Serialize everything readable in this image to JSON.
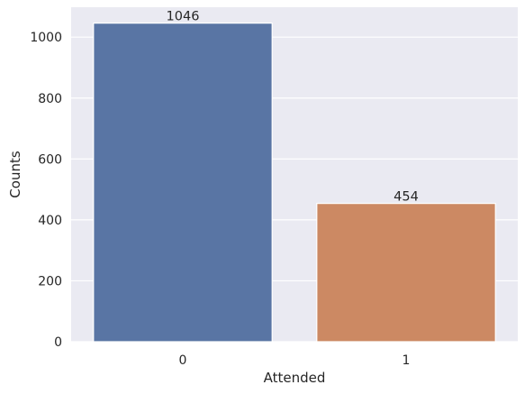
{
  "chart_data": {
    "type": "bar",
    "xlabel": "Attended",
    "ylabel": "Counts",
    "categories": [
      "0",
      "1"
    ],
    "values": [
      1046,
      454
    ],
    "data_labels": [
      "1046",
      "454"
    ],
    "bar_colors": [
      "#5975a4",
      "#cc8963"
    ],
    "ylim": [
      0,
      1098.3
    ],
    "yticks": [
      0,
      200,
      400,
      600,
      800,
      1000
    ],
    "ytick_labels": [
      "0",
      "200",
      "400",
      "600",
      "800",
      "1000"
    ],
    "grid": true,
    "legend": "none",
    "plot_background": "#eaeaf2",
    "grid_color": "#ffffff"
  }
}
